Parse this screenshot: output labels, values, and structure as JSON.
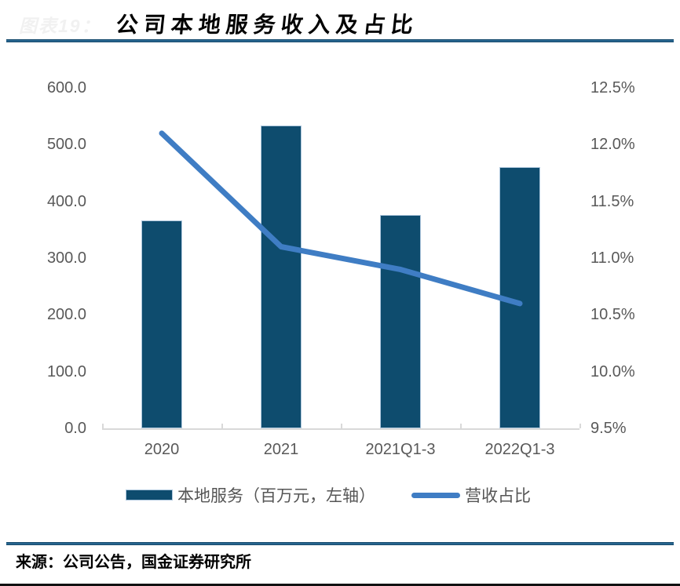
{
  "figure": {
    "watermark": "图表19：",
    "title": "公司本地服务收入及占比",
    "source": "来源：公司公告，国金证券研究所"
  },
  "colors": {
    "bar_fill": "#0e4c6e",
    "bar_edge": "#aec7dd",
    "line": "#3f7dc4",
    "axis_text": "#595959",
    "axis_line": "#d9d9d9",
    "title_rule_blue": "#1f6190",
    "bottom_rule_black": "#111111"
  },
  "chart_data": {
    "type": "bar",
    "subtype": "bar+line combo",
    "title": "公司本地服务收入及占比",
    "categories": [
      "2020",
      "2021",
      "2021Q1-3",
      "2022Q1-3"
    ],
    "series": [
      {
        "name": "本地服务（百万元，左轴）",
        "type": "bar",
        "axis": "left",
        "color": "#0e4c6e",
        "values": [
          366,
          533,
          376,
          460
        ]
      },
      {
        "name": "营收占比",
        "type": "line",
        "axis": "right",
        "color": "#3f7dc4",
        "values": [
          12.1,
          11.1,
          10.9,
          10.6
        ]
      }
    ],
    "left_axis": {
      "min": 0,
      "max": 600,
      "step": 100,
      "tick_labels": [
        "600.0",
        "500.0",
        "400.0",
        "300.0",
        "200.0",
        "100.0",
        "0.0"
      ]
    },
    "right_axis": {
      "min": 9.5,
      "max": 12.5,
      "step": 0.5,
      "tick_labels": [
        "12.5%",
        "12.0%",
        "11.5%",
        "11.0%",
        "10.5%",
        "10.0%",
        "9.5%"
      ]
    },
    "grid": "off",
    "legend_position": "bottom"
  },
  "legend": {
    "bar_label": "本地服务（百万元，左轴）",
    "line_label": "营收占比"
  }
}
